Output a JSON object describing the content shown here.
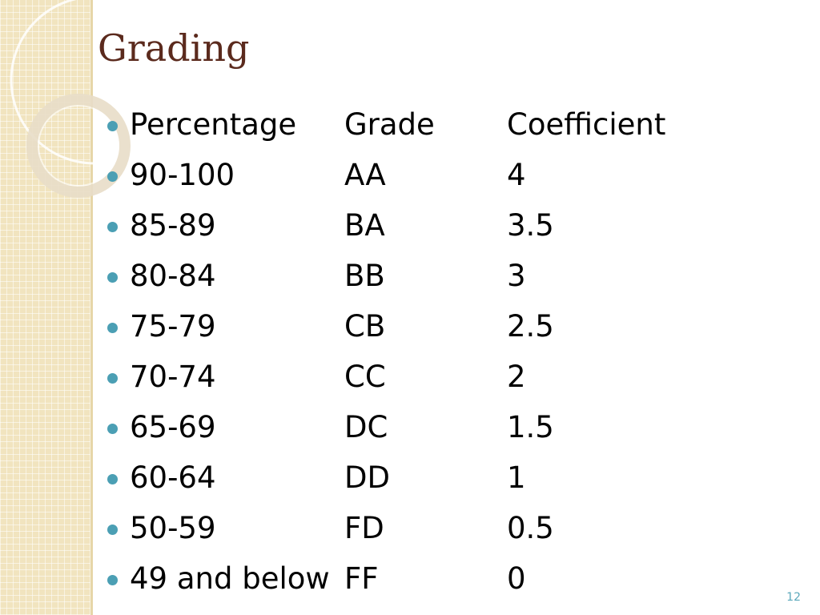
{
  "slide": {
    "title": "Grading",
    "page_number": "12",
    "colors": {
      "title": "#5b2a1d",
      "bullet": "#4b9fb4",
      "side_band": "#f1e4bf",
      "page_number": "#5ba8bb"
    }
  },
  "table": {
    "header": {
      "percentage": "Percentage",
      "grade": "Grade",
      "coefficient": "Coefficient"
    },
    "rows": [
      {
        "percentage": "90-100",
        "grade": "AA",
        "coefficient": "4"
      },
      {
        "percentage": "85-89",
        "grade": "BA",
        "coefficient": "3.5"
      },
      {
        "percentage": "80-84",
        "grade": "BB",
        "coefficient": "3"
      },
      {
        "percentage": "75-79",
        "grade": "CB",
        "coefficient": "2.5"
      },
      {
        "percentage": "70-74",
        "grade": "CC",
        "coefficient": "2"
      },
      {
        "percentage": "65-69",
        "grade": "DC",
        "coefficient": "1.5"
      },
      {
        "percentage": "60-64",
        "grade": "DD",
        "coefficient": "1"
      },
      {
        "percentage": "50-59",
        "grade": "FD",
        "coefficient": "0.5"
      },
      {
        "percentage": "49 and below",
        "grade": "FF",
        "coefficient": "0"
      }
    ]
  }
}
